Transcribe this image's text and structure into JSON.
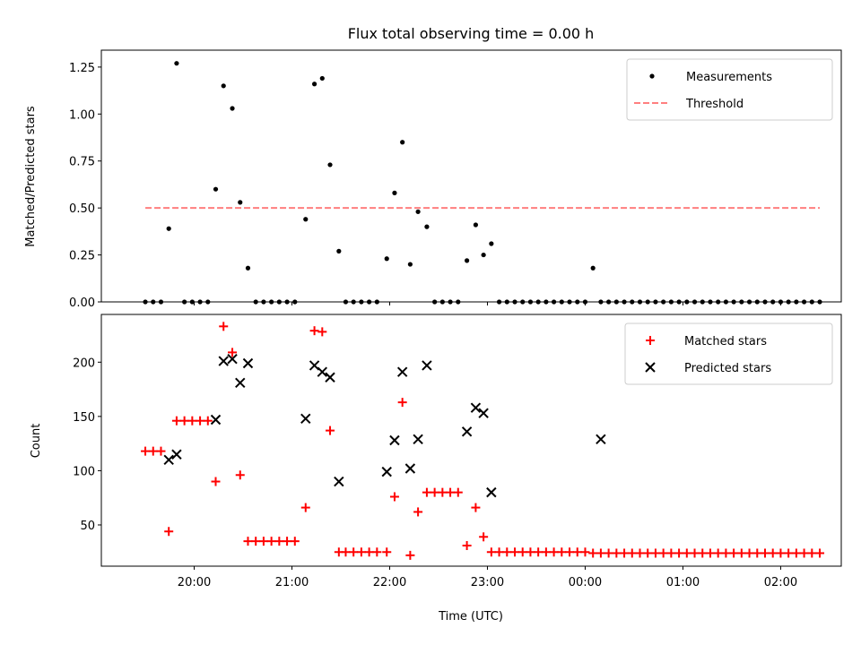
{
  "chart_data": [
    {
      "type": "scatter",
      "title": "Flux total observing time = 0.00 h",
      "xlabel": "",
      "ylabel": "Matched/Predicted stars",
      "ylim": [
        0,
        1.34
      ],
      "yticks": [
        "0.00",
        "0.25",
        "0.50",
        "0.75",
        "1.00",
        "1.25"
      ],
      "xticks": [
        "20:00",
        "21:00",
        "22:00",
        "23:00",
        "00:00",
        "01:00",
        "02:00"
      ],
      "xlim_hours": [
        19.05,
        26.62
      ],
      "legend_position": "upper right",
      "series": [
        {
          "name": "Measurements",
          "marker": "dot",
          "color": "#000000",
          "x": [
            19.5,
            19.58,
            19.66,
            19.74,
            19.82,
            19.9,
            19.98,
            20.06,
            20.14,
            20.22,
            20.3,
            20.39,
            20.47,
            20.55,
            20.63,
            20.71,
            20.79,
            20.87,
            20.95,
            21.03,
            21.14,
            21.23,
            21.31,
            21.39,
            21.48,
            21.55,
            21.63,
            21.71,
            21.79,
            21.87,
            21.97,
            22.05,
            22.13,
            22.21,
            22.29,
            22.38,
            22.46,
            22.54,
            22.62,
            22.7,
            22.79,
            22.88,
            22.96,
            23.04,
            23.12,
            23.2,
            23.28,
            23.36,
            23.44,
            23.52,
            23.6,
            23.68,
            23.76,
            23.84,
            23.92,
            24.0,
            24.08,
            24.16,
            24.24,
            24.32,
            24.4,
            24.48,
            24.56,
            24.64,
            24.72,
            24.8,
            24.88,
            24.96,
            25.04,
            25.12,
            25.2,
            25.28,
            25.36,
            25.44,
            25.52,
            25.6,
            25.68,
            25.76,
            25.84,
            25.92,
            26.0,
            26.08,
            26.16,
            26.24,
            26.32,
            26.4
          ],
          "y": [
            0,
            0,
            0,
            0.39,
            1.27,
            0,
            0,
            0,
            0,
            0.6,
            1.15,
            1.03,
            0.53,
            0.18,
            0,
            0,
            0,
            0,
            0,
            0,
            0.44,
            1.16,
            1.19,
            0.73,
            0.27,
            0,
            0,
            0,
            0,
            0,
            0.23,
            0.58,
            0.85,
            0.2,
            0.48,
            0.4,
            0,
            0,
            0,
            0,
            0.22,
            0.41,
            0.25,
            0.31,
            0,
            0,
            0,
            0,
            0,
            0,
            0,
            0,
            0,
            0,
            0,
            0,
            0.18,
            0,
            0,
            0,
            0,
            0,
            0,
            0,
            0,
            0,
            0,
            0,
            0,
            0,
            0,
            0,
            0,
            0,
            0,
            0,
            0,
            0,
            0,
            0,
            0,
            0,
            0,
            0,
            0,
            0
          ]
        },
        {
          "name": "Threshold",
          "marker": "dashed-line",
          "color": "#ff7f7f",
          "x": [
            19.5,
            26.4
          ],
          "y": [
            0.5,
            0.5
          ]
        }
      ]
    },
    {
      "type": "scatter",
      "title": "",
      "xlabel": "Time (UTC)",
      "ylabel": "Count",
      "ylim": [
        12,
        244
      ],
      "yticks": [
        "50",
        "100",
        "150",
        "200"
      ],
      "xticks": [
        "20:00",
        "21:00",
        "22:00",
        "23:00",
        "00:00",
        "01:00",
        "02:00"
      ],
      "xlim_hours": [
        19.05,
        26.62
      ],
      "legend_position": "upper right",
      "series": [
        {
          "name": "Matched stars",
          "marker": "plus",
          "color": "#ff0000",
          "x": [
            19.5,
            19.58,
            19.66,
            19.74,
            19.82,
            19.9,
            19.98,
            20.06,
            20.14,
            20.22,
            20.3,
            20.39,
            20.47,
            20.55,
            20.63,
            20.71,
            20.79,
            20.87,
            20.95,
            21.03,
            21.14,
            21.23,
            21.31,
            21.39,
            21.48,
            21.55,
            21.63,
            21.71,
            21.79,
            21.87,
            21.97,
            22.05,
            22.13,
            22.21,
            22.29,
            22.38,
            22.46,
            22.54,
            22.62,
            22.7,
            22.79,
            22.88,
            22.96,
            23.04,
            23.12,
            23.2,
            23.28,
            23.36,
            23.44,
            23.52,
            23.6,
            23.68,
            23.76,
            23.84,
            23.92,
            24.0,
            24.08,
            24.16,
            24.24,
            24.32,
            24.4,
            24.48,
            24.56,
            24.64,
            24.72,
            24.8,
            24.88,
            24.96,
            25.04,
            25.12,
            25.2,
            25.28,
            25.36,
            25.44,
            25.52,
            25.6,
            25.68,
            25.76,
            25.84,
            25.92,
            26.0,
            26.08,
            26.16,
            26.24,
            26.32,
            26.4
          ],
          "y": [
            118,
            118,
            118,
            44,
            146,
            146,
            146,
            146,
            146,
            90,
            233,
            209,
            96,
            35,
            35,
            35,
            35,
            35,
            35,
            35,
            66,
            229,
            228,
            137,
            25,
            25,
            25,
            25,
            25,
            25,
            25,
            76,
            163,
            22,
            62,
            80,
            80,
            80,
            80,
            80,
            31,
            66,
            39,
            25,
            25,
            25,
            25,
            25,
            25,
            25,
            25,
            25,
            25,
            25,
            25,
            25,
            24,
            24,
            24,
            24,
            24,
            24,
            24,
            24,
            24,
            24,
            24,
            24,
            24,
            24,
            24,
            24,
            24,
            24,
            24,
            24,
            24,
            24,
            24,
            24,
            24,
            24,
            24,
            24,
            24,
            24
          ]
        },
        {
          "name": "Predicted stars",
          "marker": "x",
          "color": "#000000",
          "x": [
            19.74,
            19.82,
            20.22,
            20.3,
            20.39,
            20.47,
            20.55,
            21.14,
            21.23,
            21.31,
            21.39,
            21.48,
            21.97,
            22.05,
            22.13,
            22.21,
            22.29,
            22.38,
            22.79,
            22.88,
            22.96,
            23.04,
            24.16
          ],
          "y": [
            110,
            115,
            147,
            201,
            203,
            181,
            199,
            148,
            197,
            191,
            186,
            90,
            99,
            128,
            191,
            102,
            129,
            197,
            136,
            158,
            153,
            80,
            129
          ]
        }
      ]
    }
  ]
}
